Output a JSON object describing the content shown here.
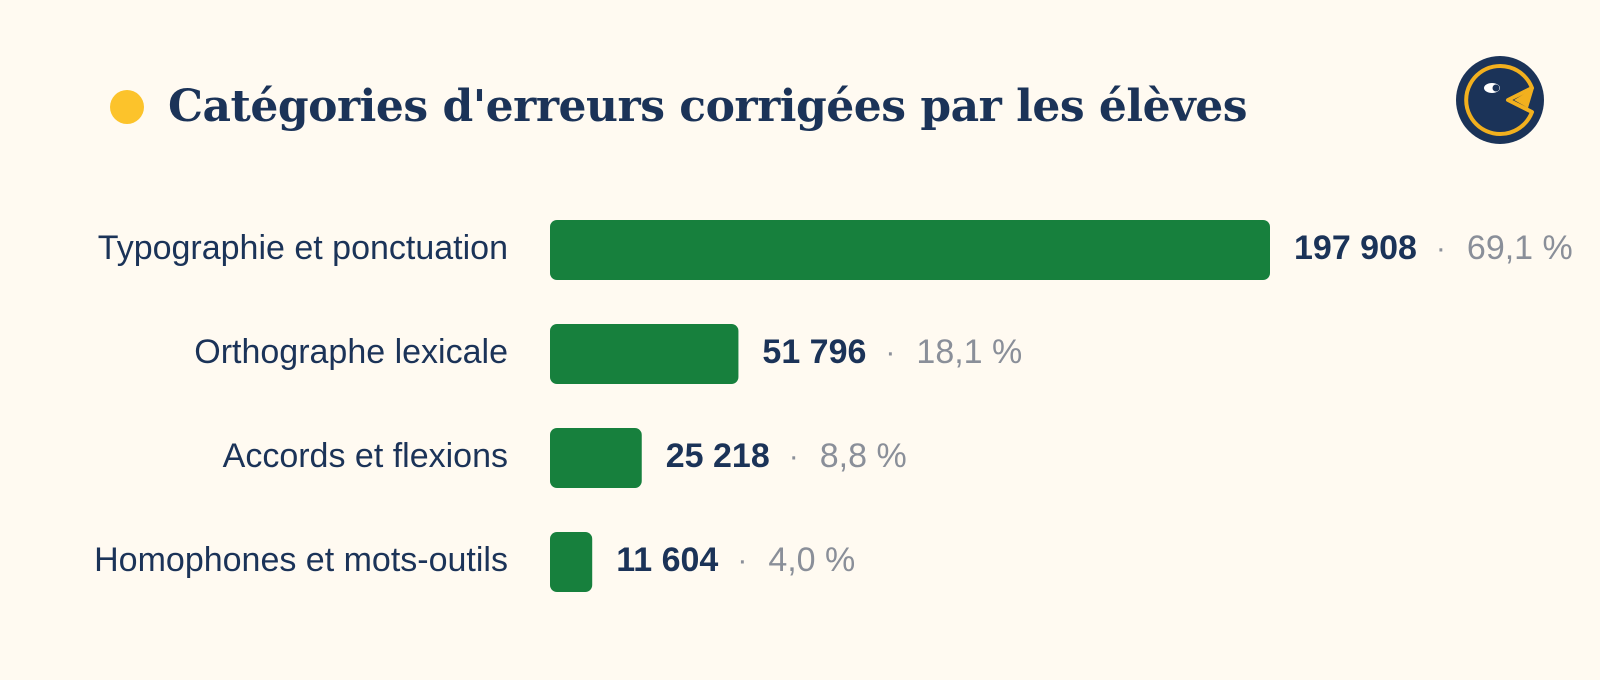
{
  "title": "Catégories d'erreurs corrigées par les élèves",
  "colors": {
    "background": "#fffaf1",
    "bar": "#17803d",
    "text_dark": "#1b3358",
    "text_muted": "#8a8f99",
    "accent_dot": "#fcc32b",
    "logo_bg": "#1b3358",
    "logo_accent": "#f2b01e"
  },
  "logo": {
    "icon": "pacman-mascot-icon"
  },
  "chart_data": {
    "type": "bar",
    "orientation": "horizontal",
    "title": "Catégories d'erreurs corrigées par les élèves",
    "categories": [
      "Typographie et ponctuation",
      "Orthographe lexicale",
      "Accords et flexions",
      "Homophones et mots-outils"
    ],
    "values": [
      197908,
      51796,
      25218,
      11604
    ],
    "value_labels": [
      "197 908",
      "51 796",
      "25 218",
      "11 604"
    ],
    "percent_labels": [
      "69,1 %",
      "18,1 %",
      "8,8 %",
      "4,0 %"
    ],
    "separator": "·",
    "xlim": [
      0,
      197908
    ],
    "grid": false,
    "legend": "none"
  }
}
